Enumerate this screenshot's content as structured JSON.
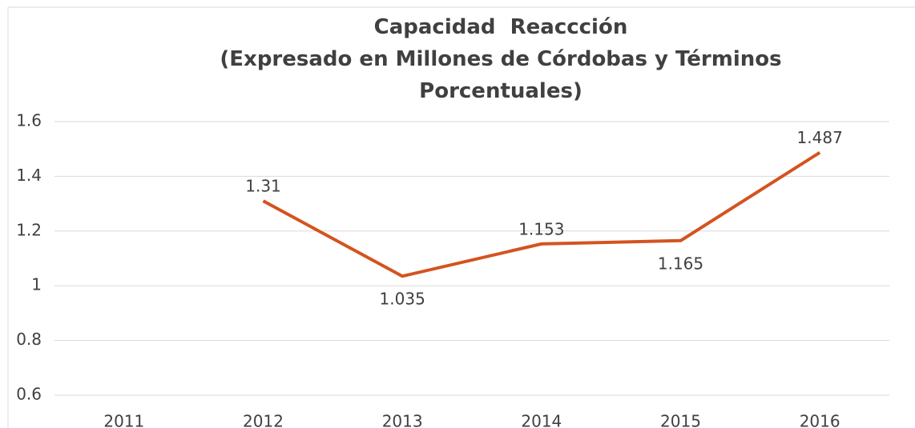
{
  "chart_data": {
    "type": "line",
    "title": "Capacidad  Reaccción",
    "subtitle": "(Expresado en Millones de Córdobas y Términos Porcentuales)",
    "categories": [
      "2011",
      "2012",
      "2013",
      "2014",
      "2015",
      "2016"
    ],
    "series": [
      {
        "name": "Capacidad Reacción",
        "color": "#d4531f",
        "values": [
          null,
          1.31,
          1.035,
          1.153,
          1.165,
          1.487
        ]
      }
    ],
    "ylim": [
      0.6,
      1.6
    ],
    "yticks": [
      0.6,
      0.8,
      1,
      1.2,
      1.4,
      1.6
    ],
    "grid": true,
    "legend": false
  }
}
